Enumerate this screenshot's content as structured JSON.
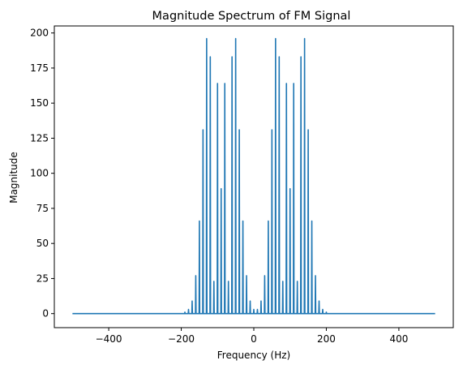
{
  "chart_data": {
    "type": "line",
    "title": "Magnitude Spectrum of FM Signal",
    "xlabel": "Frequency (Hz)",
    "ylabel": "Magnitude",
    "xlim": [
      -550,
      550
    ],
    "ylim": [
      -10,
      205
    ],
    "xticks": [
      -400,
      -200,
      0,
      200,
      400
    ],
    "yticks": [
      0,
      25,
      50,
      75,
      100,
      125,
      150,
      175,
      200
    ],
    "grid": false,
    "line_color": "#1f77b4",
    "series": [
      {
        "x_range": [
          -500,
          500
        ],
        "baseline": 0,
        "spikes": [
          {
            "x": -190,
            "y": 1
          },
          {
            "x": -180,
            "y": 3
          },
          {
            "x": -170,
            "y": 9
          },
          {
            "x": -160,
            "y": 27
          },
          {
            "x": -150,
            "y": 66
          },
          {
            "x": -140,
            "y": 131
          },
          {
            "x": -130,
            "y": 196
          },
          {
            "x": -120,
            "y": 183
          },
          {
            "x": -110,
            "y": 23
          },
          {
            "x": -100,
            "y": 164
          },
          {
            "x": -90,
            "y": 89
          },
          {
            "x": -80,
            "y": 164
          },
          {
            "x": -70,
            "y": 23
          },
          {
            "x": -60,
            "y": 183
          },
          {
            "x": -50,
            "y": 196
          },
          {
            "x": -40,
            "y": 131
          },
          {
            "x": -30,
            "y": 66
          },
          {
            "x": -20,
            "y": 27
          },
          {
            "x": -10,
            "y": 9
          },
          {
            "x": 0,
            "y": 3
          },
          {
            "x": 10,
            "y": 3
          },
          {
            "x": 20,
            "y": 9
          },
          {
            "x": 30,
            "y": 27
          },
          {
            "x": 40,
            "y": 66
          },
          {
            "x": 50,
            "y": 131
          },
          {
            "x": 60,
            "y": 196
          },
          {
            "x": 70,
            "y": 183
          },
          {
            "x": 80,
            "y": 23
          },
          {
            "x": 90,
            "y": 164
          },
          {
            "x": 100,
            "y": 89
          },
          {
            "x": 110,
            "y": 164
          },
          {
            "x": 120,
            "y": 23
          },
          {
            "x": 130,
            "y": 183
          },
          {
            "x": 140,
            "y": 196
          },
          {
            "x": 150,
            "y": 131
          },
          {
            "x": 160,
            "y": 66
          },
          {
            "x": 170,
            "y": 27
          },
          {
            "x": 180,
            "y": 9
          },
          {
            "x": 190,
            "y": 3
          },
          {
            "x": 200,
            "y": 1
          }
        ]
      }
    ]
  }
}
